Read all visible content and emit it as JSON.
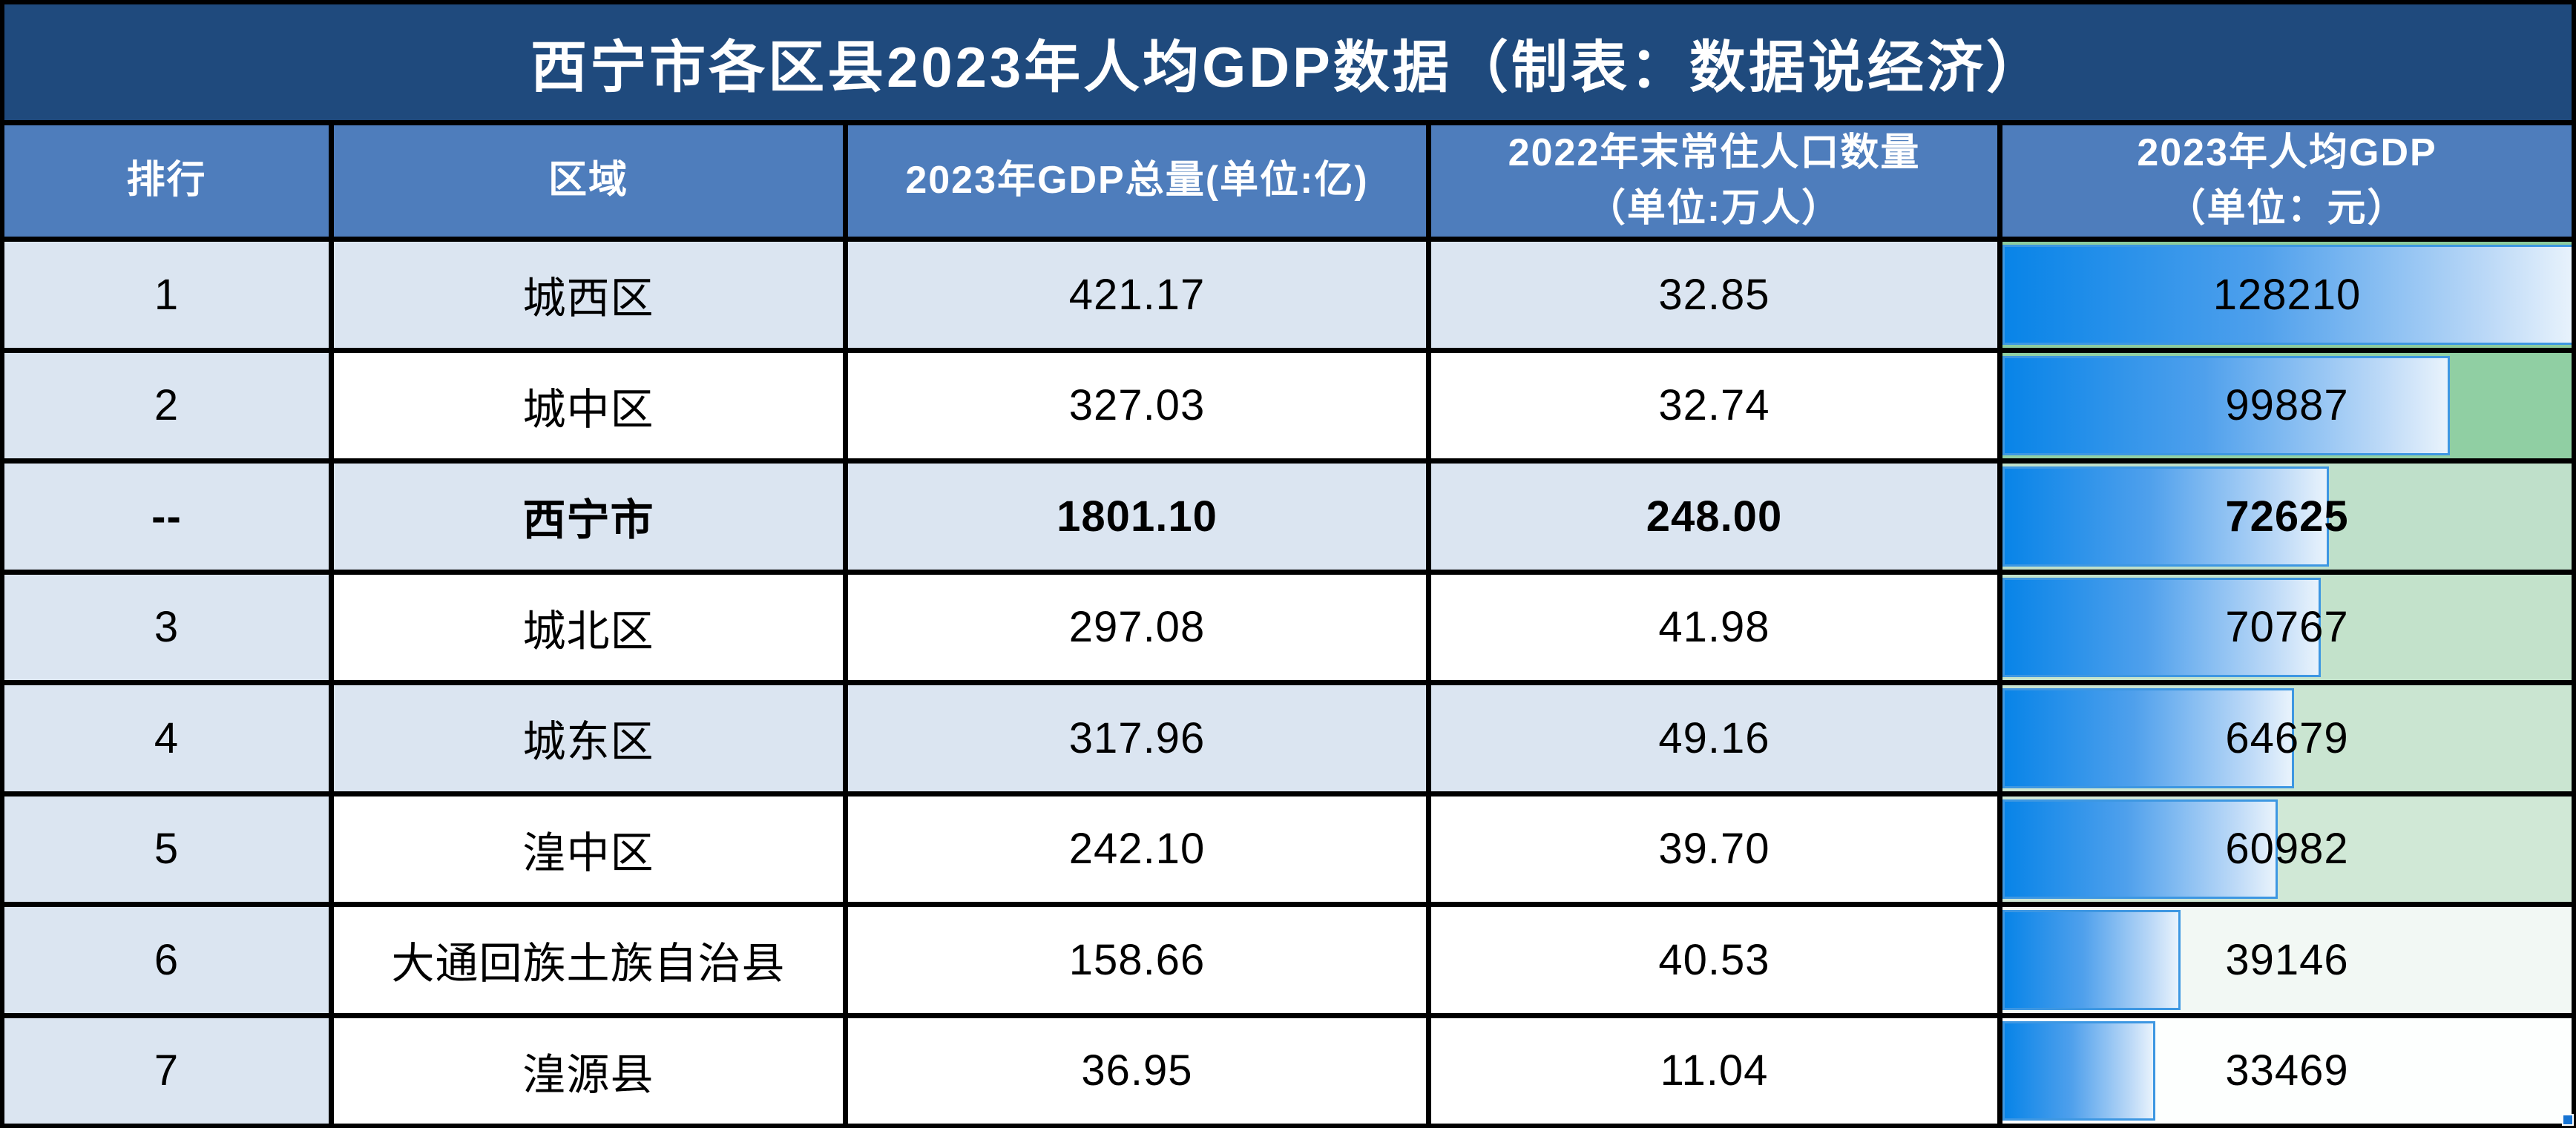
{
  "title": "西宁市各区县2023年人均GDP数据（制表：数据说经济）",
  "header": {
    "rank": "排行",
    "region": "区域",
    "gdp": "2023年GDP总量(单位:亿)",
    "population": "2022年末常住人口数量\n（单位:万人）",
    "per_capita": "2023年人均GDP\n（单位：元）"
  },
  "rows": [
    {
      "rank": "1",
      "region": "城西区",
      "gdp": "421.17",
      "population": "32.85",
      "per_capita": "128210",
      "per_capita_value": 128210,
      "zebra": "blue",
      "scale_color": "#8ccb9e",
      "bold": false
    },
    {
      "rank": "2",
      "region": "城中区",
      "gdp": "327.03",
      "population": "32.74",
      "per_capita": "99887",
      "per_capita_value": 99887,
      "zebra": "white",
      "scale_color": "#90cfa3",
      "bold": false
    },
    {
      "rank": "--",
      "region": "西宁市",
      "gdp": "1801.10",
      "population": "248.00",
      "per_capita": "72625",
      "per_capita_value": 72625,
      "zebra": "blue",
      "scale_color": "#bfe0ca",
      "bold": true
    },
    {
      "rank": "3",
      "region": "城北区",
      "gdp": "297.08",
      "population": "41.98",
      "per_capita": "70767",
      "per_capita_value": 70767,
      "zebra": "white",
      "scale_color": "#c3e2cb",
      "bold": false
    },
    {
      "rank": "4",
      "region": "城东区",
      "gdp": "317.96",
      "population": "49.16",
      "per_capita": "64679",
      "per_capita_value": 64679,
      "zebra": "blue",
      "scale_color": "#cae5d1",
      "bold": false
    },
    {
      "rank": "5",
      "region": "湟中区",
      "gdp": "242.10",
      "population": "39.70",
      "per_capita": "60982",
      "per_capita_value": 60982,
      "zebra": "white",
      "scale_color": "#d0e8d6",
      "bold": false
    },
    {
      "rank": "6",
      "region": "大通回族土族自治县",
      "gdp": "158.66",
      "population": "40.53",
      "per_capita": "39146",
      "per_capita_value": 39146,
      "zebra": "white",
      "scale_color": "#f2f8f4",
      "bold": false
    },
    {
      "rank": "7",
      "region": "湟源县",
      "gdp": "36.95",
      "population": "11.04",
      "per_capita": "33469",
      "per_capita_value": 33469,
      "zebra": "white",
      "scale_color": "#fdfffe",
      "bold": false
    }
  ],
  "bar": {
    "max": 128210,
    "gradient_start": "#0884e8",
    "gradient_mid": "#4fa0ec",
    "gradient_light": "#bcd9f7",
    "gradient_end": "#e9f3fc",
    "border": "#3d97e2"
  },
  "colors": {
    "title_bg": "#1f4a7d",
    "header_bg": "#4e7dbc",
    "zebra_blue": "#dbe5f1",
    "zebra_white": "#ffffff",
    "grid_line": "#000000",
    "title_text": "#ffffff",
    "header_text": "#ffffff",
    "data_text": "#000000",
    "selection_handle": "#1673d2"
  },
  "chart_data": {
    "type": "table",
    "title": "西宁市各区县2023年人均GDP数据（制表：数据说经济）",
    "columns": [
      "排行",
      "区域",
      "2023年GDP总量(单位:亿)",
      "2022年末常住人口数量（单位:万人）",
      "2023年人均GDP（单位：元）"
    ],
    "rows": [
      [
        "1",
        "城西区",
        421.17,
        32.85,
        128210
      ],
      [
        "2",
        "城中区",
        327.03,
        32.74,
        99887
      ],
      [
        "--",
        "西宁市",
        1801.1,
        248.0,
        72625
      ],
      [
        "3",
        "城北区",
        297.08,
        41.98,
        70767
      ],
      [
        "4",
        "城东区",
        317.96,
        49.16,
        64679
      ],
      [
        "5",
        "湟中区",
        242.1,
        39.7,
        60982
      ],
      [
        "6",
        "大通回族土族自治县",
        158.66,
        40.53,
        39146
      ],
      [
        "7",
        "湟源县",
        36.95,
        11.04,
        33469
      ]
    ],
    "bar_column": "2023年人均GDP（单位：元）",
    "bar_range": [
      0,
      128210
    ],
    "notes": "最后一列带蓝色渐变数据条，背景为绿-白色阶（数值越大绿色越深）"
  }
}
